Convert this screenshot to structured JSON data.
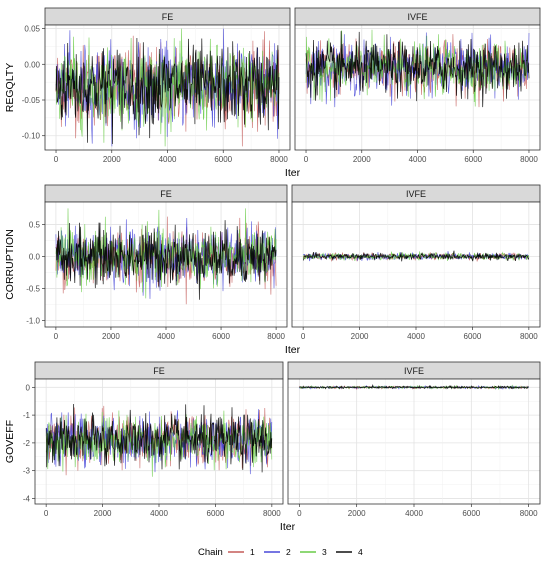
{
  "chart_data": [
    {
      "type": "line",
      "ylabel": "REGQLTY",
      "xlabel": "Iter",
      "xlim": [
        0,
        8000
      ],
      "x_ticks": [
        0,
        2000,
        4000,
        6000,
        8000
      ],
      "x_tick_labels": [
        "0",
        "2000",
        "4000",
        "6000",
        "8000"
      ],
      "panels": [
        {
          "facet": "FE",
          "ylim": [
            -0.12,
            0.055
          ],
          "y_ticks": [
            -0.1,
            -0.05,
            0.0,
            0.05
          ],
          "y_tick_labels": [
            "-0.10",
            "-0.05",
            "0.00",
            "0.05"
          ],
          "trace": {
            "center": -0.03,
            "spread": 0.028,
            "min": -0.115,
            "max": 0.05
          }
        },
        {
          "facet": "IVFE",
          "ylim": [
            -0.12,
            0.055
          ],
          "trace": {
            "center": -0.005,
            "spread": 0.018,
            "min": -0.06,
            "max": 0.055
          }
        }
      ]
    },
    {
      "type": "line",
      "ylabel": "CORRUPTION",
      "xlabel": "Iter",
      "xlim": [
        0,
        8000
      ],
      "x_ticks": [
        0,
        2000,
        4000,
        6000,
        8000
      ],
      "x_tick_labels": [
        "0",
        "2000",
        "4000",
        "6000",
        "8000"
      ],
      "panels": [
        {
          "facet": "FE",
          "ylim": [
            -1.1,
            0.85
          ],
          "y_ticks": [
            -1.0,
            -0.5,
            0.0,
            0.5
          ],
          "y_tick_labels": [
            "-1.0",
            "-0.5",
            "0.0",
            "0.5"
          ],
          "trace": {
            "center": 0.0,
            "spread": 0.22,
            "min": -1.0,
            "max": 0.75
          }
        },
        {
          "facet": "IVFE",
          "ylim": [
            -1.1,
            0.85
          ],
          "trace": {
            "center": 0.0,
            "spread": 0.025,
            "min": -0.09,
            "max": 0.09
          }
        }
      ]
    },
    {
      "type": "line",
      "ylabel": "GOVEFF",
      "xlabel": "Iter",
      "xlim": [
        0,
        8000
      ],
      "x_ticks": [
        0,
        2000,
        4000,
        6000,
        8000
      ],
      "x_tick_labels": [
        "0",
        "2000",
        "4000",
        "6000",
        "8000"
      ],
      "panels": [
        {
          "facet": "FE",
          "ylim": [
            -4.2,
            0.3
          ],
          "y_ticks": [
            -4,
            -3,
            -2,
            -1,
            0
          ],
          "y_tick_labels": [
            "-4",
            "-3",
            "-2",
            "-1",
            "0"
          ],
          "trace": {
            "center": -1.9,
            "spread": 0.45,
            "min": -3.95,
            "max": -0.6
          }
        },
        {
          "facet": "IVFE",
          "ylim": [
            -4.2,
            0.3
          ],
          "trace": {
            "center": 0.0,
            "spread": 0.02,
            "min": -0.08,
            "max": 0.08
          }
        }
      ]
    }
  ],
  "legend": {
    "title": "Chain",
    "position": "bottom",
    "items": [
      {
        "label": "1",
        "color": "#c0504d"
      },
      {
        "label": "2",
        "color": "#3b3bd6"
      },
      {
        "label": "3",
        "color": "#5ec83a"
      },
      {
        "label": "4",
        "color": "#000000"
      }
    ]
  },
  "grid": true
}
